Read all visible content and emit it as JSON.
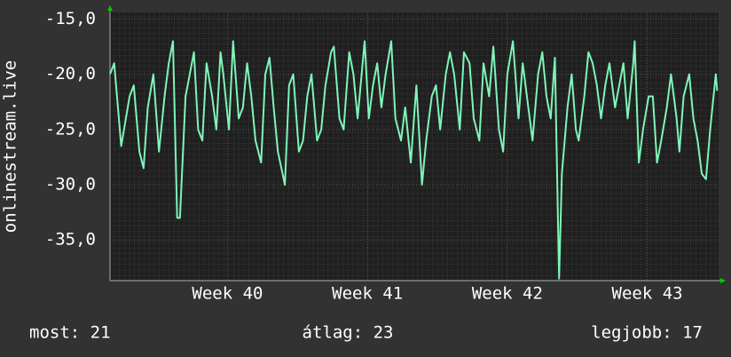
{
  "chart_data": {
    "type": "line",
    "ylabel": "onlinestream.live",
    "x": [
      39.16,
      39.19,
      39.24,
      39.3,
      39.33,
      39.37,
      39.4,
      39.43,
      39.47,
      39.51,
      39.55,
      39.58,
      39.61,
      39.64,
      39.66,
      39.7,
      39.73,
      39.76,
      39.79,
      39.82,
      39.85,
      39.89,
      39.92,
      39.95,
      39.97,
      40.01,
      40.04,
      40.08,
      40.11,
      40.14,
      40.17,
      40.2,
      40.24,
      40.27,
      40.3,
      40.33,
      40.36,
      40.41,
      40.44,
      40.47,
      40.51,
      40.54,
      40.57,
      40.6,
      40.64,
      40.67,
      40.7,
      40.74,
      40.76,
      40.8,
      40.83,
      40.87,
      40.9,
      40.93,
      40.98,
      41.01,
      41.04,
      41.07,
      41.1,
      41.13,
      41.17,
      41.2,
      41.24,
      41.27,
      41.31,
      41.35,
      41.39,
      41.42,
      41.46,
      41.49,
      41.52,
      41.56,
      41.59,
      41.62,
      41.66,
      41.69,
      41.73,
      41.76,
      41.8,
      41.83,
      41.87,
      41.9,
      41.94,
      41.97,
      42.0,
      42.04,
      42.08,
      42.11,
      42.15,
      42.18,
      42.22,
      42.25,
      42.28,
      42.31,
      42.34,
      42.37,
      42.39,
      42.43,
      42.46,
      42.49,
      42.51,
      42.55,
      42.58,
      42.61,
      42.64,
      42.67,
      42.7,
      42.73,
      42.77,
      42.8,
      42.83,
      42.86,
      42.9,
      42.91,
      42.94,
      42.97,
      43.01,
      43.04,
      43.07,
      43.1,
      43.14,
      43.17,
      43.21,
      43.23,
      43.26,
      43.3,
      43.33,
      43.36,
      43.39,
      43.42,
      43.45,
      43.49,
      43.5
    ],
    "series": [
      {
        "name": "onlinestream.live",
        "color": "#7ff5b8",
        "values": [
          -20,
          -19,
          -26.5,
          -22,
          -21,
          -27,
          -28.5,
          -23,
          -20,
          -27,
          -22,
          -19,
          -17,
          -33,
          -33,
          -22,
          -20,
          -18,
          -25,
          -26,
          -19,
          -22,
          -25,
          -18,
          -20,
          -25,
          -17,
          -24,
          -23,
          -19,
          -22,
          -26,
          -28,
          -20,
          -18.5,
          -23,
          -27,
          -30,
          -21,
          -20,
          -27,
          -26,
          -22,
          -20,
          -26,
          -25,
          -21,
          -18,
          -17.5,
          -24,
          -25,
          -18,
          -20,
          -24,
          -17,
          -24,
          -21,
          -19,
          -23,
          -20,
          -17,
          -24,
          -26,
          -23,
          -28,
          -21,
          -30,
          -26,
          -22,
          -21,
          -25,
          -20,
          -18,
          -20,
          -25,
          -18,
          -19,
          -24,
          -26,
          -19,
          -22,
          -17.5,
          -25,
          -27,
          -20,
          -17,
          -24,
          -19,
          -23,
          -26,
          -20,
          -18,
          -22,
          -24,
          -18.5,
          -38.5,
          -29,
          -23,
          -20,
          -25,
          -26,
          -22,
          -18,
          -19,
          -21,
          -24,
          -21,
          -19,
          -23,
          -21,
          -19,
          -24,
          -19,
          -17,
          -28,
          -25,
          -22,
          -22,
          -28,
          -26,
          -23,
          -20,
          -24,
          -27,
          -22,
          -20,
          -24,
          -26,
          -29,
          -29.5,
          -25,
          -20,
          -21.5
        ]
      }
    ],
    "xlim": [
      39.16,
      43.51
    ],
    "ylim": [
      -38.6,
      -14.4
    ],
    "xticks": [
      {
        "value": 40,
        "label": "Week 40"
      },
      {
        "value": 41,
        "label": "Week 41"
      },
      {
        "value": 42,
        "label": "Week 42"
      },
      {
        "value": 43,
        "label": "Week 43"
      }
    ],
    "yticks": [
      {
        "value": -35,
        "label": "-35,0"
      },
      {
        "value": -30,
        "label": "-30,0"
      },
      {
        "value": -25,
        "label": "-25,0"
      },
      {
        "value": -20,
        "label": "-20,0"
      },
      {
        "value": -15,
        "label": "-15,0"
      }
    ],
    "grid": true,
    "footer": [
      "most: 21",
      "átlag: 23",
      "legjobb: 17"
    ]
  }
}
